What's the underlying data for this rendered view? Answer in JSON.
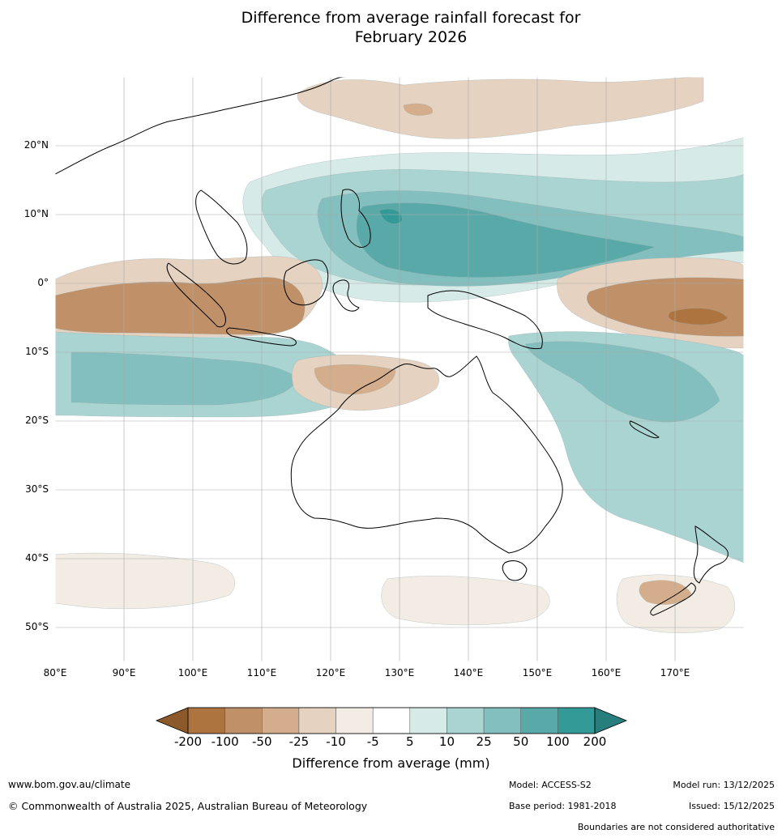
{
  "title_line1": "Difference from average rainfall forecast for",
  "title_line2": "February 2026",
  "map": {
    "lat_labels": [
      "20°N",
      "10°N",
      "0°",
      "10°S",
      "20°S",
      "30°S",
      "40°S",
      "50°S"
    ],
    "lon_labels": [
      "80°E",
      "90°E",
      "100°E",
      "110°E",
      "120°E",
      "130°E",
      "140°E",
      "150°E",
      "160°E",
      "170°E"
    ],
    "lat_values": [
      20,
      10,
      0,
      -10,
      -20,
      -30,
      -40,
      -50
    ],
    "lon_values": [
      80,
      90,
      100,
      110,
      120,
      130,
      140,
      150,
      160,
      170
    ],
    "extent": {
      "lon_min": 80,
      "lon_max": 180,
      "lat_min": -55,
      "lat_max": 30
    }
  },
  "colorbar": {
    "ticks": [
      "-200",
      "-100",
      "-50",
      "-25",
      "-10",
      "-5",
      "5",
      "10",
      "25",
      "50",
      "100",
      "200"
    ],
    "colors": [
      "#8c5a2a",
      "#ad7440",
      "#c09068",
      "#d4ae8c",
      "#e6d2c0",
      "#f2ece4",
      "#ffffff",
      "#d6eae8",
      "#a9d4d2",
      "#83bfbe",
      "#5aa9a9",
      "#349a98",
      "#267f7d"
    ],
    "label": "Difference from average (mm)"
  },
  "footer": {
    "website": "www.bom.gov.au/climate",
    "copyright": "© Commonwealth of Australia 2025, Australian Bureau of Meteorology",
    "model": "Model: ACCESS-S2",
    "base_period": "Base period: 1981-2018",
    "model_run": "Model run: 13/12/2025",
    "issued": "Issued: 15/12/2025",
    "disclaimer": "Boundaries are not considered authoritative"
  }
}
